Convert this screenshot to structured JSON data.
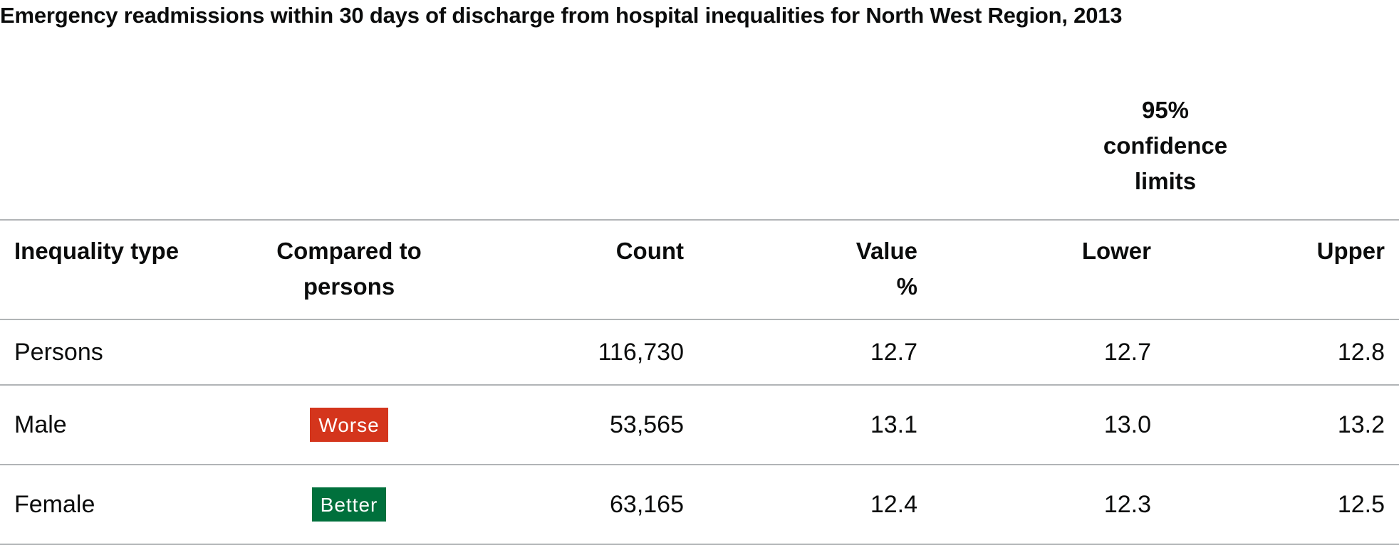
{
  "title": "Emergency readmissions within 30 days of discharge from hospital inequalities for North West Region, 2013",
  "table": {
    "group_header": "95% confidence limits",
    "headers": {
      "type": "Inequality type",
      "compared": "Compared to persons",
      "count": "Count",
      "value": "Value %",
      "lower": "Lower",
      "upper": "Upper"
    },
    "rows": [
      {
        "type": "Persons",
        "compared": "",
        "count": "116,730",
        "value": "12.7",
        "lower": "12.7",
        "upper": "12.8"
      },
      {
        "type": "Male",
        "compared": "Worse",
        "compared_color": "#d4351c",
        "count": "53,565",
        "value": "13.1",
        "lower": "13.0",
        "upper": "13.2"
      },
      {
        "type": "Female",
        "compared": "Better",
        "compared_color": "#00703c",
        "count": "63,165",
        "value": "12.4",
        "lower": "12.3",
        "upper": "12.5"
      }
    ]
  }
}
